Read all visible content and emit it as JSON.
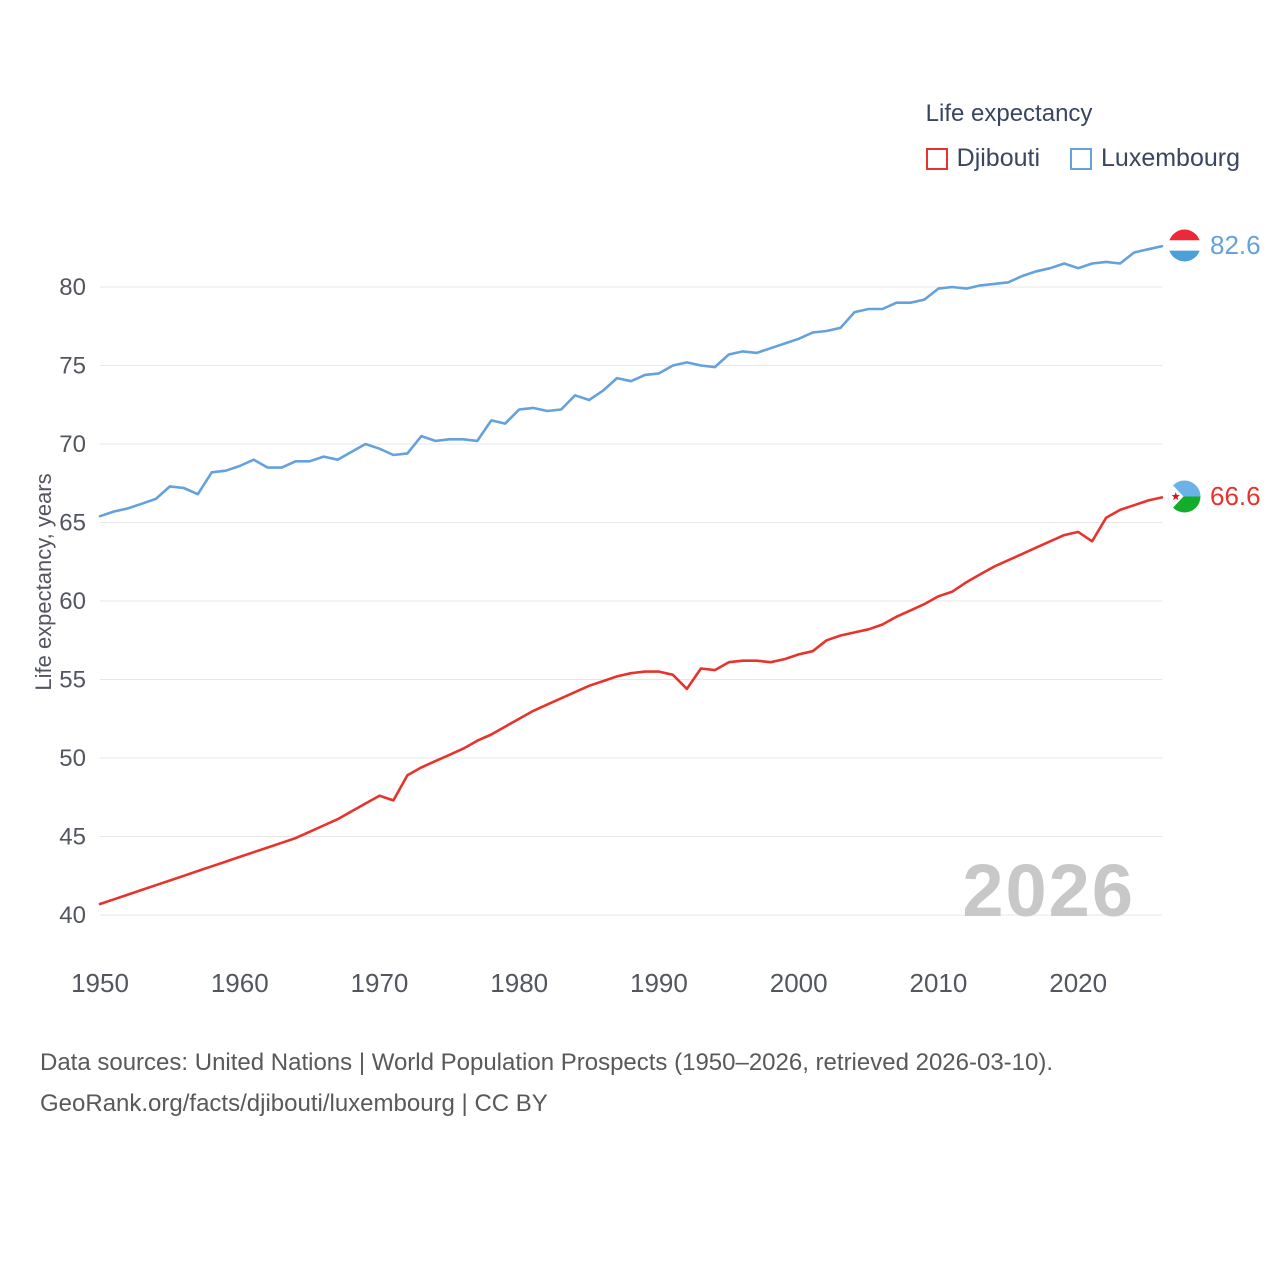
{
  "legend": {
    "title": "Life expectancy",
    "items": [
      {
        "label": "Djibouti",
        "color": "#e8332d"
      },
      {
        "label": "Luxembourg",
        "color": "#64a1dd"
      }
    ]
  },
  "chart_data": {
    "type": "line",
    "title": "Life expectancy",
    "ylabel": "Life expectancy, years",
    "xlabel": "",
    "xlim": [
      1950,
      2026
    ],
    "ylim": [
      40,
      83.5
    ],
    "x_ticks": [
      1950,
      1960,
      1970,
      1980,
      1990,
      2000,
      2010,
      2020
    ],
    "y_ticks": [
      40,
      45,
      50,
      55,
      60,
      65,
      70,
      75,
      80
    ],
    "grid": "horizontal",
    "legend_position": "top-right",
    "watermark": "2026",
    "x": [
      1950,
      1951,
      1952,
      1953,
      1954,
      1955,
      1956,
      1957,
      1958,
      1959,
      1960,
      1961,
      1962,
      1963,
      1964,
      1965,
      1966,
      1967,
      1968,
      1969,
      1970,
      1971,
      1972,
      1973,
      1974,
      1975,
      1976,
      1977,
      1978,
      1979,
      1980,
      1981,
      1982,
      1983,
      1984,
      1985,
      1986,
      1987,
      1988,
      1989,
      1990,
      1991,
      1992,
      1993,
      1994,
      1995,
      1996,
      1997,
      1998,
      1999,
      2000,
      2001,
      2002,
      2003,
      2004,
      2005,
      2006,
      2007,
      2008,
      2009,
      2010,
      2011,
      2012,
      2013,
      2014,
      2015,
      2016,
      2017,
      2018,
      2019,
      2020,
      2021,
      2022,
      2023,
      2024,
      2025,
      2026
    ],
    "series": [
      {
        "name": "Djibouti",
        "color": "#e8332d",
        "end_label": "66.6",
        "values": [
          40.7,
          41.0,
          41.3,
          41.6,
          41.9,
          42.2,
          42.5,
          42.8,
          43.1,
          43.4,
          43.7,
          44.0,
          44.3,
          44.6,
          44.9,
          45.3,
          45.7,
          46.1,
          46.6,
          47.1,
          47.6,
          47.3,
          48.9,
          49.4,
          49.8,
          50.2,
          50.6,
          51.1,
          51.5,
          52.0,
          52.5,
          53.0,
          53.4,
          53.8,
          54.2,
          54.6,
          54.9,
          55.2,
          55.4,
          55.5,
          55.5,
          55.3,
          54.4,
          55.7,
          55.6,
          56.1,
          56.2,
          56.2,
          56.1,
          56.3,
          56.6,
          56.8,
          57.5,
          57.8,
          58.0,
          58.2,
          58.5,
          59.0,
          59.4,
          59.8,
          60.3,
          60.6,
          61.2,
          61.7,
          62.2,
          62.6,
          63.0,
          63.4,
          63.8,
          64.2,
          64.4,
          63.8,
          65.3,
          65.8,
          66.1,
          66.4,
          66.6
        ]
      },
      {
        "name": "Luxembourg",
        "color": "#64a1dd",
        "end_label": "82.6",
        "values": [
          65.4,
          65.7,
          65.9,
          66.2,
          66.5,
          67.3,
          67.2,
          66.8,
          68.2,
          68.3,
          68.6,
          69.0,
          68.5,
          68.5,
          68.9,
          68.9,
          69.2,
          69.0,
          69.5,
          70.0,
          69.7,
          69.3,
          69.4,
          70.5,
          70.2,
          70.3,
          70.3,
          70.2,
          71.5,
          71.3,
          72.2,
          72.3,
          72.1,
          72.2,
          73.1,
          72.8,
          73.4,
          74.2,
          74.0,
          74.4,
          74.5,
          75.0,
          75.2,
          75.0,
          74.9,
          75.7,
          75.9,
          75.8,
          76.1,
          76.4,
          76.7,
          77.1,
          77.2,
          77.4,
          78.4,
          78.6,
          78.6,
          79.0,
          79.0,
          79.2,
          79.9,
          80.0,
          79.9,
          80.1,
          80.2,
          80.3,
          80.7,
          81.0,
          81.2,
          81.5,
          81.2,
          81.5,
          81.6,
          81.5,
          82.2,
          82.4,
          82.6
        ]
      }
    ]
  },
  "footer": {
    "line1": "Data sources: United Nations | World Population Prospects (1950–2026, retrieved 2026-03-10).",
    "line2": "GeoRank.org/facts/djibouti/luxembourg | CC BY"
  }
}
